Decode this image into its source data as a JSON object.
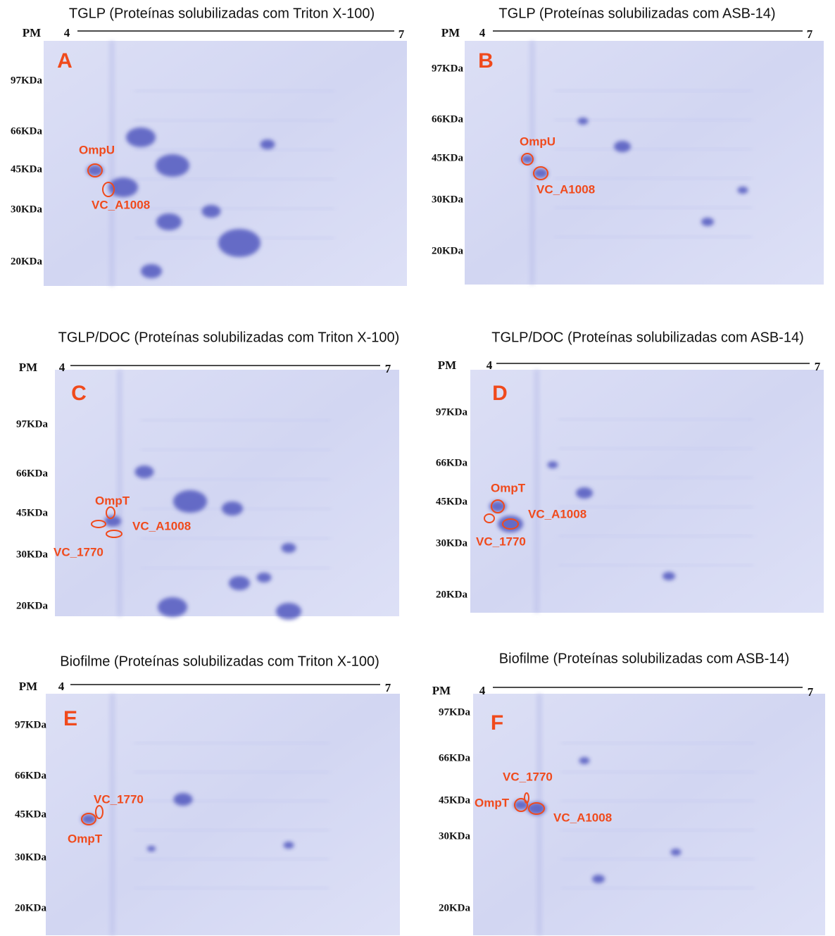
{
  "panels": [
    {
      "title": "TGLP (Proteínas solubilizadas com Triton X-100)",
      "pm": "PM",
      "ph_start": "4",
      "ph_end": "7",
      "letter": "A",
      "mw_markers": [
        "97KDa",
        "66KDa",
        "45KDa",
        "30KDa",
        "20KDa"
      ],
      "labels": [
        "OmpU",
        "VC_A1008"
      ]
    },
    {
      "title": "TGLP (Proteínas solubilizadas com ASB-14)",
      "pm": "PM",
      "ph_start": "4",
      "ph_end": "7",
      "letter": "B",
      "mw_markers": [
        "97KDa",
        "66KDa",
        "45KDa",
        "30KDa",
        "20KDa"
      ],
      "labels": [
        "OmpU",
        "VC_A1008"
      ]
    },
    {
      "title": "TGLP/DOC (Proteínas solubilizadas com Triton X-100)",
      "pm": "PM",
      "ph_start": "4",
      "ph_end": "7",
      "letter": "C",
      "mw_markers": [
        "97KDa",
        "66KDa",
        "45KDa",
        "30KDa",
        "20KDa"
      ],
      "labels": [
        "OmpT",
        "VC_A1008",
        "VC_1770"
      ]
    },
    {
      "title": "TGLP/DOC (Proteínas solubilizadas com ASB-14)",
      "pm": "PM",
      "ph_start": "4",
      "ph_end": "7",
      "letter": "D",
      "mw_markers": [
        "97KDa",
        "66KDa",
        "45KDa",
        "30KDa",
        "20KDa"
      ],
      "labels": [
        "OmpT",
        "VC_A1008",
        "VC_1770"
      ]
    },
    {
      "title": "Biofilme (Proteínas solubilizadas com Triton X-100)",
      "pm": "PM",
      "ph_start": "4",
      "ph_end": "7",
      "letter": "E",
      "mw_markers": [
        "97KDa",
        "66KDa",
        "45KDa",
        "30KDa",
        "20KDa"
      ],
      "labels": [
        "VC_1770",
        "OmpT"
      ]
    },
    {
      "title": "Biofilme (Proteínas solubilizadas com ASB-14)",
      "pm": "PM",
      "ph_start": "4",
      "ph_end": "7",
      "letter": "F",
      "mw_markers": [
        "97KDa",
        "66KDa",
        "45KDa",
        "30KDa",
        "20KDa"
      ],
      "labels": [
        "VC_1770",
        "OmpT",
        "VC_A1008"
      ]
    }
  ]
}
